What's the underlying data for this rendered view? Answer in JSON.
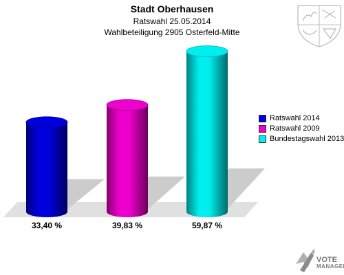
{
  "header": {
    "title": "Stadt Oberhausen",
    "subtitle_1": "Ratswahl 25.05.2014",
    "subtitle_2": "Wahlbeteiligung 2905 Osterfeld-Mitte"
  },
  "chart_data": {
    "type": "bar",
    "categories": [
      "Ratswahl 2014",
      "Ratswahl 2009",
      "Bundestagswahl 2013"
    ],
    "values": [
      33.4,
      39.83,
      59.87
    ],
    "value_labels": [
      "33,40 %",
      "39,83 %",
      "59,87 %"
    ],
    "colors": [
      "#0000dd",
      "#ee00cc",
      "#00eeee"
    ],
    "ylim": [
      0,
      60
    ],
    "grid": false,
    "legend_position": "right"
  },
  "legend": {
    "items": [
      {
        "label": "Ratswahl 2014",
        "color": "#0000dd"
      },
      {
        "label": "Ratswahl 2009",
        "color": "#ee00cc"
      },
      {
        "label": "Bundestagswahl 2013",
        "color": "#00eeee"
      }
    ]
  },
  "branding": {
    "line1": "VOTE",
    "line2": "MANAGER",
    "icon": "crest-icon",
    "footer_icon": "vote-manager-logo-icon"
  }
}
